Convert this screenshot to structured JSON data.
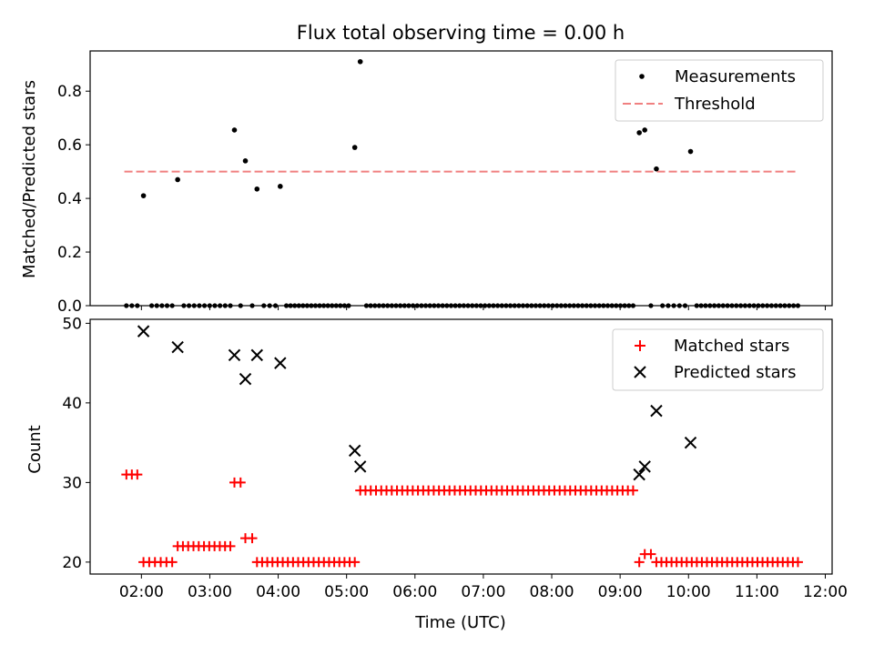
{
  "title": "Flux total observing time = 0.00 h",
  "x_axis": {
    "label": "Time (UTC)",
    "ticks": [
      "02:00",
      "03:00",
      "04:00",
      "05:00",
      "06:00",
      "07:00",
      "08:00",
      "09:00",
      "10:00",
      "11:00",
      "12:00"
    ],
    "range_hours": [
      1.25,
      12.1
    ]
  },
  "chart_data": [
    {
      "type": "scatter",
      "ylabel": "Matched/Predicted stars",
      "ylim": [
        0,
        0.95
      ],
      "yticks": [
        "0.0",
        "0.2",
        "0.4",
        "0.6",
        "0.8"
      ],
      "legend": {
        "position": "top-right",
        "entries": [
          {
            "label": "Measurements",
            "marker": "dot",
            "color": "#000000"
          },
          {
            "label": "Threshold",
            "marker": "dashed-line",
            "color": "#f08080"
          }
        ]
      },
      "threshold": {
        "value": 0.5,
        "x_start": 1.75,
        "x_end": 11.6,
        "color": "#f08080"
      },
      "nonzero_points": [
        [
          2.03,
          0.41
        ],
        [
          2.53,
          0.47
        ],
        [
          3.36,
          0.655
        ],
        [
          3.52,
          0.54
        ],
        [
          3.69,
          0.435
        ],
        [
          4.03,
          0.445
        ],
        [
          5.12,
          0.59
        ],
        [
          5.2,
          0.91
        ],
        [
          9.28,
          0.645
        ],
        [
          9.36,
          0.655
        ],
        [
          9.53,
          0.51
        ],
        [
          10.03,
          0.575
        ]
      ],
      "zero_ranges": [
        [
          1.78,
          1.94,
          3
        ],
        [
          2.15,
          2.45,
          5
        ],
        [
          2.62,
          3.3,
          10
        ],
        [
          3.45,
          3.45,
          1
        ],
        [
          3.62,
          3.62,
          1
        ],
        [
          3.79,
          3.96,
          3
        ],
        [
          4.12,
          5.03,
          16
        ],
        [
          5.29,
          9.19,
          64
        ],
        [
          9.45,
          9.45,
          1
        ],
        [
          9.62,
          9.95,
          5
        ],
        [
          10.12,
          11.6,
          24
        ]
      ]
    },
    {
      "type": "scatter",
      "ylabel": "Count",
      "ylim": [
        18.5,
        50.5
      ],
      "yticks": [
        "20",
        "30",
        "40",
        "50"
      ],
      "legend": {
        "position": "top-right",
        "entries": [
          {
            "label": "Matched stars",
            "marker": "plus",
            "color": "#ff0000"
          },
          {
            "label": "Predicted stars",
            "marker": "x",
            "color": "#000000"
          }
        ]
      },
      "predicted_stars": [
        [
          2.03,
          49
        ],
        [
          2.53,
          47
        ],
        [
          3.36,
          46
        ],
        [
          3.52,
          43
        ],
        [
          3.69,
          46
        ],
        [
          4.03,
          45
        ],
        [
          5.12,
          34
        ],
        [
          5.2,
          32
        ],
        [
          9.28,
          31
        ],
        [
          9.36,
          32
        ],
        [
          9.53,
          39
        ],
        [
          10.03,
          35
        ]
      ],
      "matched_ranges": [
        [
          1.78,
          1.94,
          3,
          31
        ],
        [
          2.03,
          2.45,
          6,
          20
        ],
        [
          2.53,
          3.3,
          11,
          22
        ],
        [
          3.36,
          3.45,
          2,
          30
        ],
        [
          3.52,
          3.62,
          2,
          23
        ],
        [
          3.69,
          5.12,
          20,
          20
        ],
        [
          5.2,
          9.19,
          53,
          29
        ],
        [
          9.28,
          9.28,
          1,
          20
        ],
        [
          9.36,
          9.45,
          2,
          21
        ],
        [
          9.53,
          11.6,
          29,
          20
        ]
      ]
    }
  ]
}
